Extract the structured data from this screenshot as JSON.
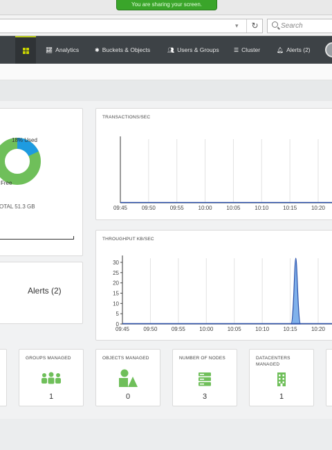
{
  "browser": {
    "share_banner": "You are sharing your screen.",
    "search_placeholder": "Search",
    "reload_icon": "reload-icon"
  },
  "nav": {
    "items": [
      {
        "label": "",
        "icon": "grid-icon"
      },
      {
        "label": "Analytics",
        "icon": "chart-icon"
      },
      {
        "label": "Buckets & Objects",
        "icon": "gear-icon"
      },
      {
        "label": "Users & Groups",
        "icon": "users-icon"
      },
      {
        "label": "Cluster",
        "icon": "list-icon"
      },
      {
        "label": "Alerts (2)",
        "icon": "bell-icon"
      }
    ]
  },
  "storage": {
    "used_label": "18% Used",
    "free_label": "Free",
    "total_label": "OTAL 51.3 GB",
    "used_pct": 18,
    "used_color": "#1e9be0",
    "free_color": "#6fbf5a"
  },
  "alerts_panel": {
    "label": "Alerts (2)"
  },
  "stat_cards": [
    {
      "label": "GROUPS MANAGED",
      "value": "1",
      "icon": "users-group-icon"
    },
    {
      "label": "OBJECTS MANAGED",
      "value": "0",
      "icon": "shapes-icon"
    },
    {
      "label": "NUMBER OF NODES",
      "value": "3",
      "icon": "server-icon"
    },
    {
      "label": "DATACENTERS MANAGED",
      "value": "1",
      "icon": "building-icon"
    }
  ],
  "colors": {
    "accent_green": "#6fbf5a",
    "nav_bg": "#3d4246",
    "nav_active": "#c9d400",
    "line_blue": "#2a4fa8"
  },
  "chart_data": [
    {
      "type": "line",
      "title": "TRANSACTIONS/SEC",
      "x": [
        "09:45",
        "09:50",
        "09:55",
        "10:00",
        "10:05",
        "10:10",
        "10:15",
        "10:20"
      ],
      "series": [
        {
          "values": [
            0,
            0,
            0,
            0,
            0,
            0,
            0,
            0
          ]
        }
      ],
      "ylim": [
        0,
        1
      ],
      "grid": true
    },
    {
      "type": "area",
      "title": "THROUGHPUT KB/SEC",
      "x": [
        "09:45",
        "09:50",
        "09:55",
        "10:00",
        "10:05",
        "10:10",
        "10:15",
        "10:20"
      ],
      "y_ticks": [
        "0",
        "5",
        "10",
        "15",
        "20",
        "25",
        "30"
      ],
      "ylim": [
        0,
        32
      ],
      "peak": {
        "x": "10:16",
        "y": 32
      },
      "series": [
        {
          "points": [
            [
              "09:45",
              0
            ],
            [
              "10:15",
              0
            ],
            [
              "10:16",
              32
            ],
            [
              "10:17",
              0
            ],
            [
              "10:20",
              0
            ]
          ]
        }
      ],
      "grid": true
    }
  ]
}
